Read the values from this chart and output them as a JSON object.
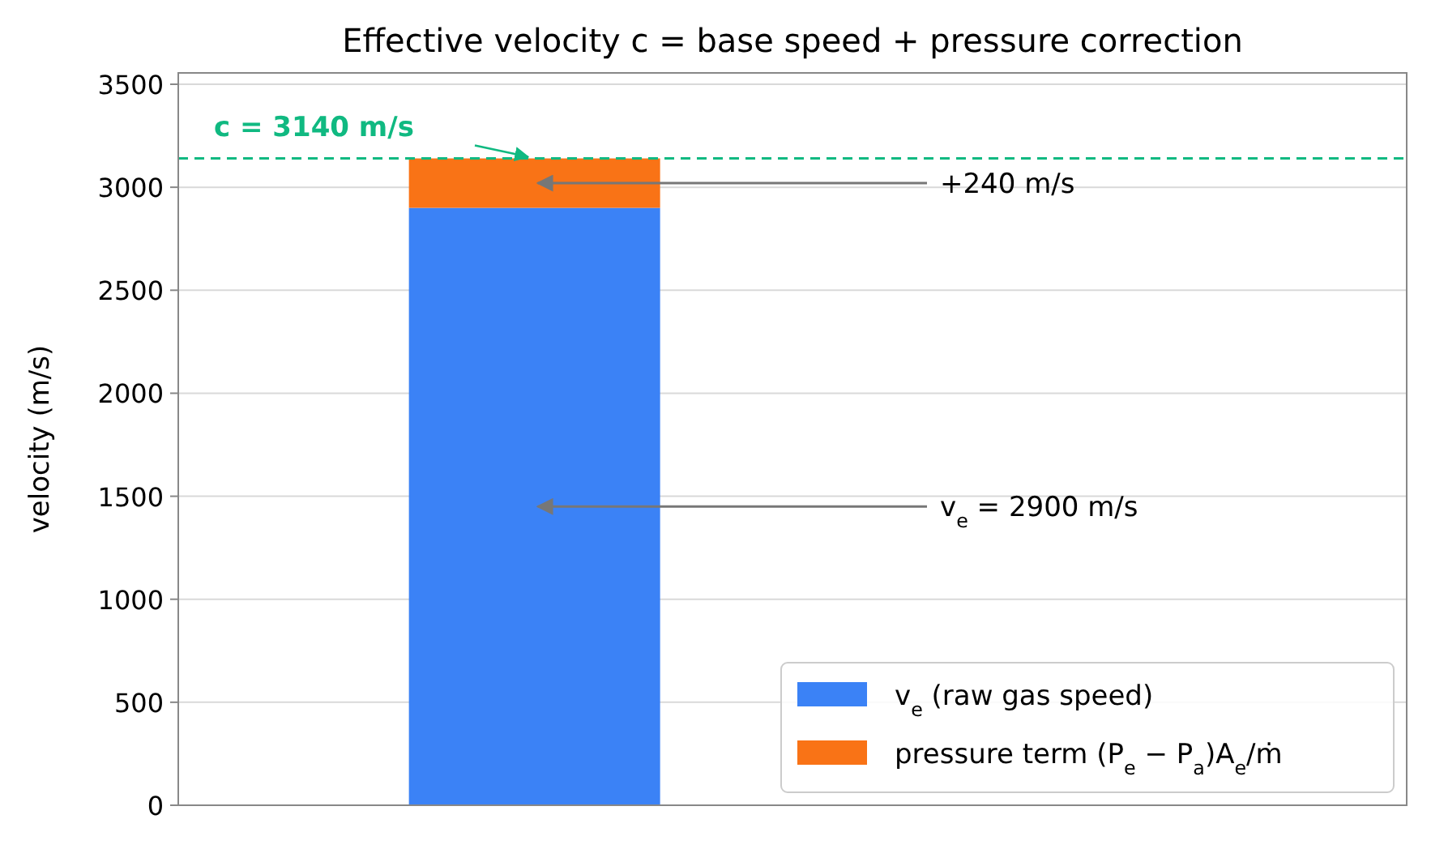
{
  "chart_data": {
    "type": "bar",
    "title": "Effective velocity c = base speed + pressure correction",
    "ylabel": "velocity (m/s)",
    "categories": [
      null
    ],
    "stacked": true,
    "series": [
      {
        "name": "v$_{e}$ (raw gas speed)",
        "color": "#3b82f6",
        "values": [
          2900
        ]
      },
      {
        "name": "pressure term (P$_{e}$ − P$_{a}$)A$_{e}$/ṁ",
        "color": "#f97316",
        "values": [
          240
        ]
      }
    ],
    "ylim": [
      0,
      3555
    ],
    "yticks": [
      0,
      500,
      1000,
      1500,
      2000,
      2500,
      3000,
      3500
    ],
    "grid": "y",
    "legend": "bottom right",
    "tick_labels": "y",
    "ref_lines": [
      {
        "axis": "y",
        "value": 3140,
        "label": "c = 3140 m/s",
        "color": "#10b981",
        "line_style": "dashed"
      }
    ],
    "annotations": [
      "+240 m/s",
      "v$_{e}$ = 2900 m/s"
    ]
  }
}
